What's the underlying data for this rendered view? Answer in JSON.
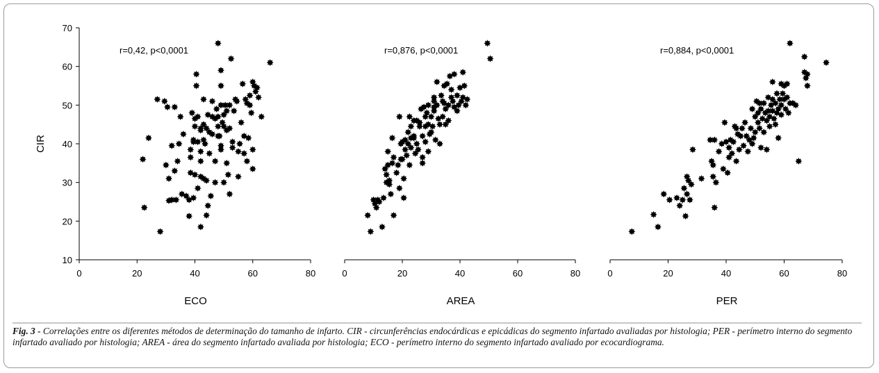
{
  "chart_data": [
    {
      "type": "scatter",
      "xlabel": "ECO",
      "ylabel": "CIR",
      "xlim": [
        0,
        80
      ],
      "ylim": [
        10,
        70
      ],
      "xticks": [
        0,
        20,
        40,
        60,
        80
      ],
      "yticks": [
        10,
        20,
        30,
        40,
        50,
        60,
        70
      ],
      "annotation": "r=0,42, p<0,0001",
      "points": [
        [
          22,
          36
        ],
        [
          22.5,
          23.5
        ],
        [
          24,
          41.5
        ],
        [
          27,
          51.5
        ],
        [
          28,
          17.3
        ],
        [
          29.5,
          51
        ],
        [
          30,
          34.5
        ],
        [
          30.5,
          49.5
        ],
        [
          31,
          31
        ],
        [
          31,
          25.3
        ],
        [
          32,
          39.5
        ],
        [
          32,
          25.5
        ],
        [
          33,
          49.5
        ],
        [
          33,
          33
        ],
        [
          33.5,
          25.5
        ],
        [
          34,
          35.5
        ],
        [
          34.5,
          40
        ],
        [
          35,
          47
        ],
        [
          35.5,
          27
        ],
        [
          36,
          42.5
        ],
        [
          37,
          26.5
        ],
        [
          38,
          21.3
        ],
        [
          38,
          25.5
        ],
        [
          38.5,
          36.5
        ],
        [
          38.5,
          38.5
        ],
        [
          38.5,
          32.5
        ],
        [
          39,
          48
        ],
        [
          39.5,
          41
        ],
        [
          39.5,
          40.5
        ],
        [
          39.5,
          26
        ],
        [
          40,
          46.5
        ],
        [
          40,
          44.5
        ],
        [
          40,
          32
        ],
        [
          40.5,
          58
        ],
        [
          40.5,
          55
        ],
        [
          41,
          47
        ],
        [
          41,
          40.5
        ],
        [
          41,
          28.5
        ],
        [
          42,
          44
        ],
        [
          42,
          43.5
        ],
        [
          42,
          38
        ],
        [
          42,
          35.5
        ],
        [
          42,
          31.5
        ],
        [
          42,
          18.5
        ],
        [
          43,
          51.5
        ],
        [
          43,
          45
        ],
        [
          43,
          41
        ],
        [
          43,
          31
        ],
        [
          43.5,
          40
        ],
        [
          44,
          44
        ],
        [
          44,
          30.5
        ],
        [
          44,
          21.5
        ],
        [
          44.5,
          47.5
        ],
        [
          44.5,
          24
        ],
        [
          45,
          43
        ],
        [
          45,
          37.5
        ],
        [
          45.5,
          26.5
        ],
        [
          46,
          51
        ],
        [
          46,
          47
        ],
        [
          46,
          42.5
        ],
        [
          47,
          46.5
        ],
        [
          47,
          35.5
        ],
        [
          47,
          30
        ],
        [
          47.5,
          49
        ],
        [
          48,
          66
        ],
        [
          48,
          47
        ],
        [
          48,
          44.5
        ],
        [
          48,
          42
        ],
        [
          48.5,
          42
        ],
        [
          49,
          59
        ],
        [
          49,
          55
        ],
        [
          49,
          50
        ],
        [
          49,
          39.5
        ],
        [
          49,
          38.5
        ],
        [
          49.5,
          45.5
        ],
        [
          50,
          47.5
        ],
        [
          50,
          44.5
        ],
        [
          50,
          30
        ],
        [
          50.5,
          50
        ],
        [
          51,
          48.5
        ],
        [
          51,
          43.5
        ],
        [
          51,
          35
        ],
        [
          51.5,
          32
        ],
        [
          52,
          50
        ],
        [
          52,
          44
        ],
        [
          52,
          27
        ],
        [
          52.5,
          62
        ],
        [
          53,
          40.5
        ],
        [
          53,
          39
        ],
        [
          53.5,
          48.5
        ],
        [
          54,
          51.5
        ],
        [
          54.5,
          51
        ],
        [
          55,
          38
        ],
        [
          55,
          31.5
        ],
        [
          55.5,
          40
        ],
        [
          56,
          45.5
        ],
        [
          56.5,
          55.5
        ],
        [
          57,
          42
        ],
        [
          57,
          37.5
        ],
        [
          57.5,
          51.5
        ],
        [
          58,
          50.5
        ],
        [
          58,
          35.5
        ],
        [
          58.5,
          41.5
        ],
        [
          59,
          50
        ],
        [
          59,
          52.5
        ],
        [
          59.5,
          48
        ],
        [
          60,
          38.5
        ],
        [
          60,
          33.5
        ],
        [
          60,
          56
        ],
        [
          60.5,
          55
        ],
        [
          61,
          53.5
        ],
        [
          61.5,
          54.5
        ],
        [
          62,
          52
        ],
        [
          63,
          47
        ],
        [
          66,
          61
        ]
      ]
    },
    {
      "type": "scatter",
      "xlabel": "AREA",
      "ylabel": "",
      "xlim": [
        0,
        80
      ],
      "ylim": [
        10,
        70
      ],
      "xticks": [
        0,
        20,
        40,
        60,
        80
      ],
      "yticks": [],
      "annotation": "r=0,876, p<0,0001",
      "points": [
        [
          8,
          21.5
        ],
        [
          9,
          17.3
        ],
        [
          10,
          25.5
        ],
        [
          10.5,
          24.5
        ],
        [
          11,
          23.5
        ],
        [
          11.5,
          25.5
        ],
        [
          12,
          25
        ],
        [
          13,
          18.5
        ],
        [
          13.5,
          26
        ],
        [
          14,
          33.5
        ],
        [
          14.5,
          30
        ],
        [
          14.5,
          32
        ],
        [
          15,
          34.5
        ],
        [
          15,
          38
        ],
        [
          15.5,
          29.5
        ],
        [
          15.5,
          30.5
        ],
        [
          16,
          27
        ],
        [
          16.5,
          35
        ],
        [
          16.5,
          41.5
        ],
        [
          17,
          21.5
        ],
        [
          17,
          36.5
        ],
        [
          18,
          32.5
        ],
        [
          18.5,
          34.5
        ],
        [
          19,
          28.5
        ],
        [
          19,
          47
        ],
        [
          19.5,
          40
        ],
        [
          19.5,
          36
        ],
        [
          20,
          40.5
        ],
        [
          20,
          36
        ],
        [
          20.5,
          26
        ],
        [
          20.5,
          31
        ],
        [
          21,
          41
        ],
        [
          21,
          38.5
        ],
        [
          21.5,
          37
        ],
        [
          22,
          43
        ],
        [
          22,
          40
        ],
        [
          22.5,
          47
        ],
        [
          22.5,
          34.5
        ],
        [
          23,
          41.5
        ],
        [
          23,
          39
        ],
        [
          23,
          44.5
        ],
        [
          24,
          42
        ],
        [
          24,
          46
        ],
        [
          24,
          41.5
        ],
        [
          24.5,
          37.5
        ],
        [
          25,
          46
        ],
        [
          25,
          40
        ],
        [
          25.5,
          38.5
        ],
        [
          26,
          44.5
        ],
        [
          26,
          45.5
        ],
        [
          26.5,
          49
        ],
        [
          27,
          42
        ],
        [
          27,
          36.5
        ],
        [
          27,
          35
        ],
        [
          27.5,
          49.5
        ],
        [
          28,
          47
        ],
        [
          28,
          44.5
        ],
        [
          28,
          40.5
        ],
        [
          28.5,
          48
        ],
        [
          29,
          50
        ],
        [
          29,
          45
        ],
        [
          29,
          38
        ],
        [
          29.5,
          42.5
        ],
        [
          30,
          47
        ],
        [
          30,
          43
        ],
        [
          30.5,
          44.5
        ],
        [
          31,
          52
        ],
        [
          31,
          51
        ],
        [
          31,
          49.5
        ],
        [
          31,
          48.5
        ],
        [
          31.5,
          41
        ],
        [
          32,
          50
        ],
        [
          32,
          56
        ],
        [
          32.5,
          46.5
        ],
        [
          33,
          45
        ],
        [
          33,
          40
        ],
        [
          33.5,
          52.5
        ],
        [
          34,
          51
        ],
        [
          34,
          47
        ],
        [
          34.5,
          55
        ],
        [
          34.5,
          50.5
        ],
        [
          35,
          49
        ],
        [
          35,
          45
        ],
        [
          35.5,
          55.5
        ],
        [
          36,
          50
        ],
        [
          36,
          46
        ],
        [
          36.5,
          57.5
        ],
        [
          37,
          54
        ],
        [
          37,
          52
        ],
        [
          37.5,
          51
        ],
        [
          38,
          58
        ],
        [
          38,
          49.5
        ],
        [
          39,
          52.5
        ],
        [
          39,
          48.5
        ],
        [
          39.5,
          50
        ],
        [
          40,
          54.5
        ],
        [
          40.5,
          51
        ],
        [
          41,
          58.5
        ],
        [
          41,
          52
        ],
        [
          41.5,
          55
        ],
        [
          42,
          50
        ],
        [
          42.5,
          51.5
        ],
        [
          49.5,
          66
        ],
        [
          50.5,
          62
        ]
      ]
    },
    {
      "type": "scatter",
      "xlabel": "PER",
      "ylabel": "",
      "xlim": [
        0,
        80
      ],
      "ylim": [
        10,
        70
      ],
      "xticks": [
        0,
        20,
        40,
        60,
        80
      ],
      "yticks": [],
      "annotation": "r=0,884, p<0,0001",
      "points": [
        [
          7.5,
          17.3
        ],
        [
          15,
          21.7
        ],
        [
          16.5,
          18.5
        ],
        [
          18.5,
          27
        ],
        [
          20.5,
          25.5
        ],
        [
          23,
          26
        ],
        [
          24,
          24
        ],
        [
          25,
          25.5
        ],
        [
          25.5,
          28.5
        ],
        [
          26,
          21.3
        ],
        [
          26.5,
          27
        ],
        [
          26.5,
          31.5
        ],
        [
          27,
          30.5
        ],
        [
          27.5,
          25.5
        ],
        [
          28,
          29.5
        ],
        [
          28.5,
          38.5
        ],
        [
          31.5,
          31
        ],
        [
          34.5,
          41
        ],
        [
          35,
          35.5
        ],
        [
          35.5,
          34.5
        ],
        [
          35.5,
          31.5
        ],
        [
          36,
          41
        ],
        [
          36,
          23.5
        ],
        [
          36.5,
          30
        ],
        [
          37.5,
          38
        ],
        [
          38.5,
          40
        ],
        [
          39,
          33.5
        ],
        [
          39.5,
          45.5
        ],
        [
          40,
          40.5
        ],
        [
          40.5,
          32.5
        ],
        [
          41,
          36.5
        ],
        [
          41,
          39
        ],
        [
          41.5,
          41
        ],
        [
          42,
          37.5
        ],
        [
          42.5,
          40.5
        ],
        [
          43,
          44.5
        ],
        [
          43.5,
          44
        ],
        [
          43.5,
          35.5
        ],
        [
          44,
          42.5
        ],
        [
          44.5,
          38.5
        ],
        [
          45,
          42
        ],
        [
          45.5,
          44
        ],
        [
          46,
          39.5
        ],
        [
          46.5,
          45.5
        ],
        [
          47,
          42
        ],
        [
          47.5,
          38
        ],
        [
          48,
          41
        ],
        [
          48.5,
          44
        ],
        [
          49,
          49
        ],
        [
          49,
          40
        ],
        [
          49.5,
          41.5
        ],
        [
          50,
          47
        ],
        [
          50,
          43
        ],
        [
          50.5,
          51
        ],
        [
          51,
          48
        ],
        [
          51,
          45.5
        ],
        [
          51.5,
          50.5
        ],
        [
          51.5,
          44
        ],
        [
          52,
          49
        ],
        [
          52,
          39
        ],
        [
          52.5,
          46.5
        ],
        [
          53,
          50.5
        ],
        [
          53,
          43
        ],
        [
          53.5,
          48
        ],
        [
          54,
          46
        ],
        [
          54,
          38.5
        ],
        [
          54.5,
          52
        ],
        [
          54.5,
          48.5
        ],
        [
          55,
          47
        ],
        [
          55,
          44.5
        ],
        [
          55.5,
          50
        ],
        [
          56,
          51.5
        ],
        [
          56,
          48.5
        ],
        [
          56,
          56
        ],
        [
          56.5,
          46.5
        ],
        [
          57,
          50.5
        ],
        [
          57,
          45
        ],
        [
          57.5,
          53
        ],
        [
          57.5,
          48
        ],
        [
          58,
          41.5
        ],
        [
          58,
          49
        ],
        [
          58.5,
          51.5
        ],
        [
          59,
          55.5
        ],
        [
          59,
          50
        ],
        [
          59,
          47.5
        ],
        [
          59.5,
          53
        ],
        [
          60,
          55
        ],
        [
          60,
          51.5
        ],
        [
          60.5,
          49
        ],
        [
          61,
          52
        ],
        [
          61,
          55.5
        ],
        [
          61.5,
          48
        ],
        [
          62,
          66
        ],
        [
          62,
          50.5
        ],
        [
          63,
          50.5
        ],
        [
          64,
          50
        ],
        [
          65,
          35.5
        ],
        [
          67,
          62.5
        ],
        [
          67,
          58.5
        ],
        [
          67.5,
          57
        ],
        [
          68,
          58
        ],
        [
          68,
          55
        ],
        [
          74.5,
          61
        ]
      ]
    }
  ],
  "caption": {
    "label": "Fig. 3 -",
    "text": " Correlações entre os diferentes métodos de determinação do tamanho de infarto. CIR - circunferências endocárdicas e epicádicas do segmento infartado avaliadas por histologia; PER - perímetro interno do segmento infartado avaliado por histologia; AREA - área do segmento infartado avaliada por histologia; ECO - perímetro interno do segmento infartado avaliado por ecocardiograma."
  },
  "colors": {
    "marker": "#000000",
    "axis": "#000000",
    "frame_border": "#9a9a9a",
    "divider": "#8c8c8c"
  }
}
